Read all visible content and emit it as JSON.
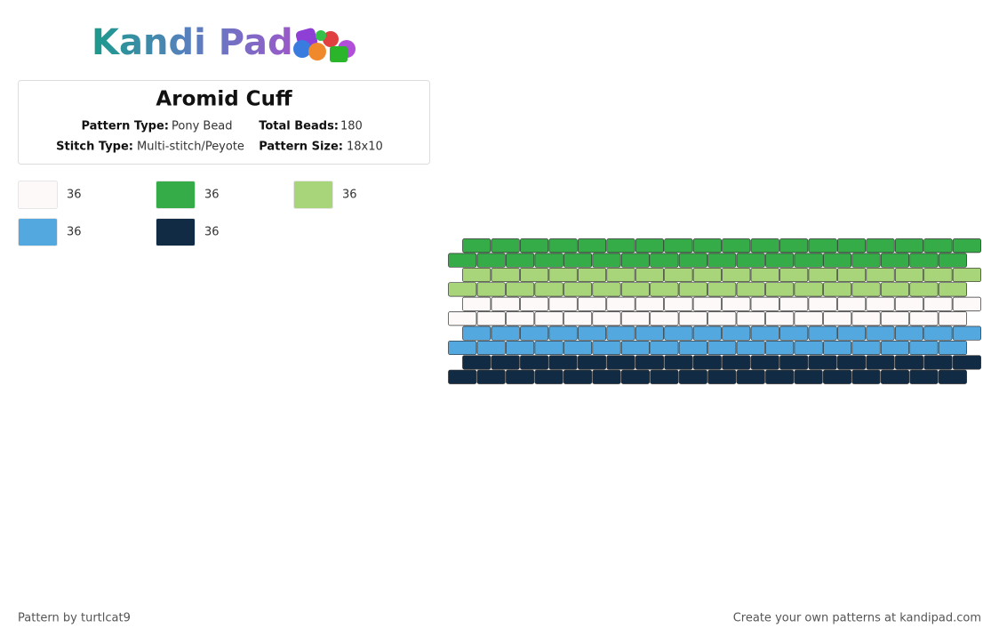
{
  "logo": {
    "text": "Kandi Pad"
  },
  "pattern": {
    "title": "Aromid Cuff",
    "info": [
      {
        "label": "Pattern Type:",
        "value": "Pony Bead"
      },
      {
        "label": "Total Beads:",
        "value": 180
      },
      {
        "label": "Stitch Type:",
        "value": "Multi-stitch/Peyote"
      },
      {
        "label": "Pattern Size:",
        "value": "18x10"
      }
    ],
    "palette": [
      {
        "color": "#fdf9f8",
        "count": 36
      },
      {
        "color": "#35ac48",
        "count": 36
      },
      {
        "color": "#a8d57a",
        "count": 36
      },
      {
        "color": "#52a8df",
        "count": 36
      },
      {
        "color": "#122b44",
        "count": 36
      }
    ],
    "rows": [
      "#35ac48",
      "#35ac48",
      "#a8d57a",
      "#a8d57a",
      "#fdf9f8",
      "#fdf9f8",
      "#52a8df",
      "#52a8df",
      "#122b44",
      "#122b44"
    ]
  },
  "footer": {
    "left": "Pattern by turtlcat9",
    "right": "Create your own patterns at kandipad.com"
  }
}
